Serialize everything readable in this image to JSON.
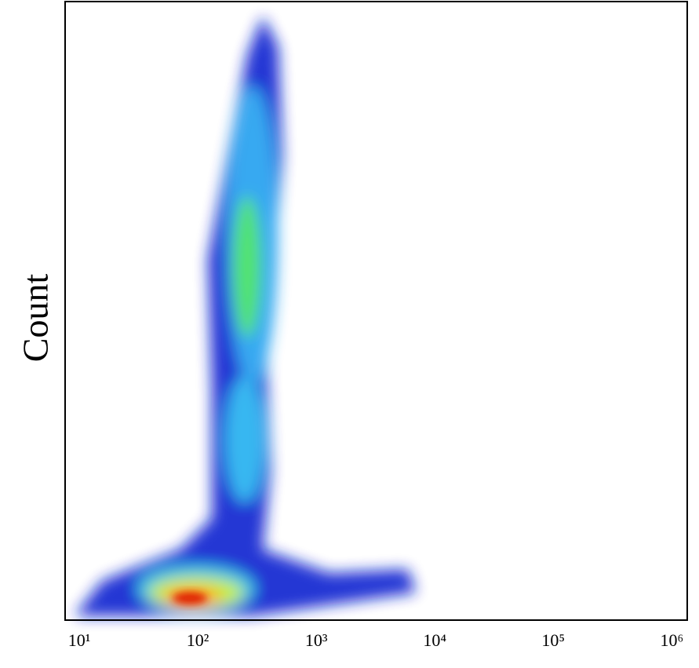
{
  "chart_data": {
    "type": "scatter",
    "ylabel": "Count",
    "xlog": true,
    "xlim": [
      7.6,
      1350000
    ],
    "xticks": [
      {
        "value": 10,
        "label": "10¹"
      },
      {
        "value": 100,
        "label": "10²"
      },
      {
        "value": 1000,
        "label": "10³"
      },
      {
        "value": 10000,
        "label": "10⁴"
      },
      {
        "value": 100000,
        "label": "10⁵"
      },
      {
        "value": 1000000,
        "label": "10⁶"
      }
    ]
  }
}
